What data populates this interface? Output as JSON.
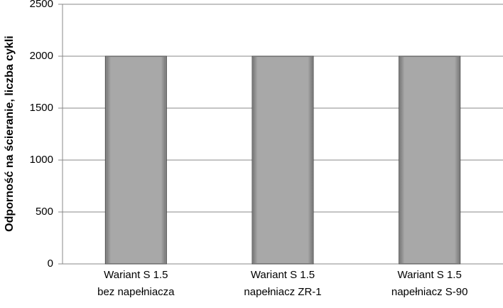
{
  "chart_data": {
    "type": "bar",
    "y_label": "Odporność na ścieranie, liczba cykli",
    "categories": [
      "Wariant  S 1.5\nbez napełniacza",
      "Wariant S 1.5\nnapełniacz ZR-1",
      "Wariant S 1.5\nnapełniacz S-90"
    ],
    "values": [
      2000,
      2000,
      2000
    ],
    "color": "#a6a6a6",
    "ylim": [
      0,
      2500
    ],
    "yticks": [
      0,
      500,
      1000,
      1500,
      2000,
      2500
    ],
    "grid": true
  }
}
